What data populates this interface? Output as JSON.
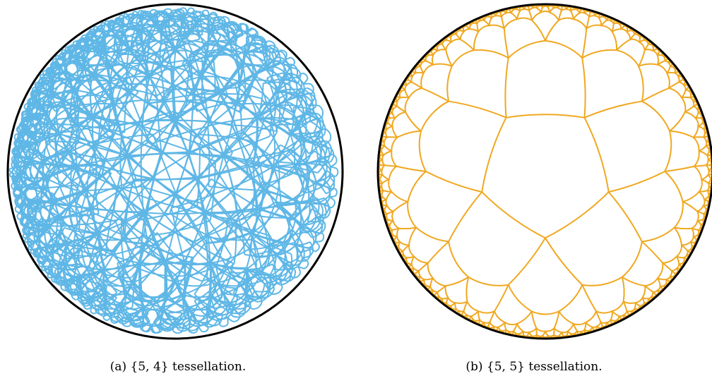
{
  "figures": [
    {
      "label": "(a)",
      "caption": "{5, 4} tessellation.",
      "schlafli": [
        5,
        4
      ],
      "line_color": "#5fb7e6",
      "boundary_color": "#000000"
    },
    {
      "label": "(b)",
      "caption": "{5, 5} tessellation.",
      "schlafli": [
        5,
        5
      ],
      "line_color": "#f0a820",
      "boundary_color": "#000000"
    }
  ]
}
